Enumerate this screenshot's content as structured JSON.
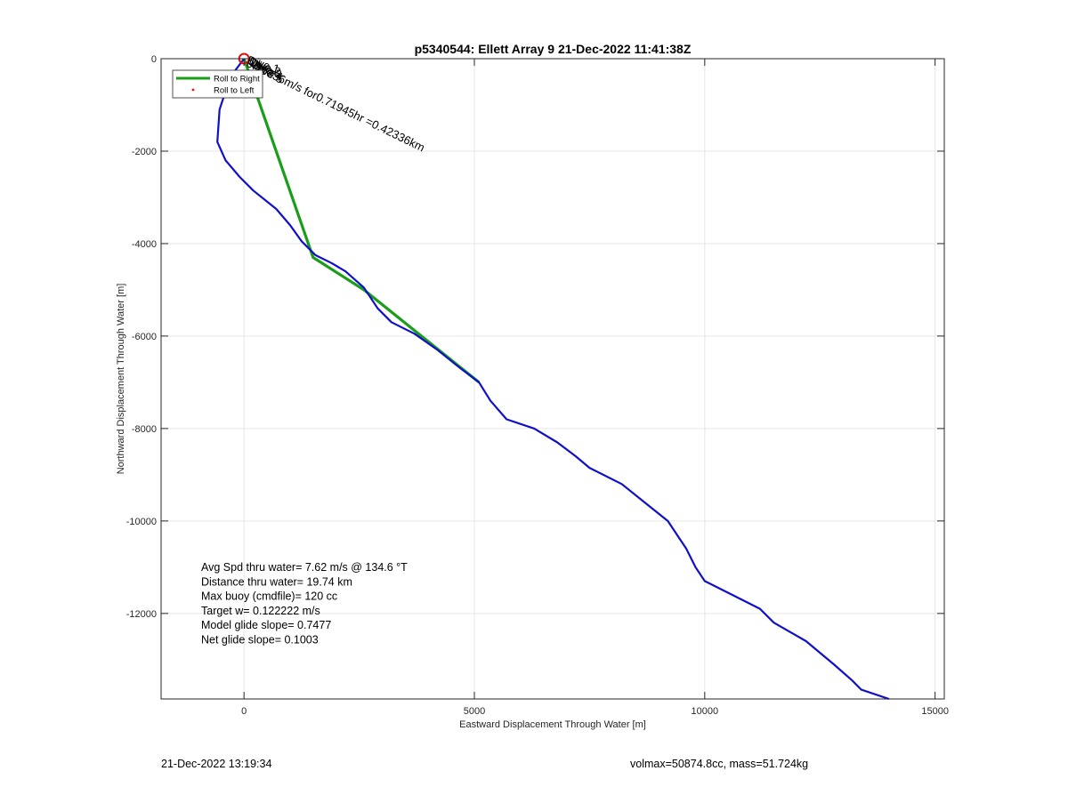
{
  "chart_data": {
    "type": "line",
    "title": "p5340544: Ellett Array 9 21-Dec-2022 11:41:38Z",
    "xlabel": "Eastward Displacement Through Water [m]",
    "ylabel": "Northward Displacement Through Water [m]",
    "xlim": [
      -1800,
      15200
    ],
    "ylim": [
      -13850,
      0
    ],
    "xticks": [
      0,
      5000,
      10000,
      15000
    ],
    "yticks": [
      -12000,
      -10000,
      -8000,
      -6000,
      -4000,
      -2000,
      0
    ],
    "grid": true,
    "legend_position": "top-left",
    "legend": [
      {
        "label": "Roll to Right",
        "style": "line",
        "color": "#1a9e1a"
      },
      {
        "label": "Roll to Left",
        "style": "dot",
        "color": "#e01010"
      }
    ],
    "series": [
      {
        "name": "Roll to Right",
        "color": "#1a9e1a",
        "points": [
          [
            0,
            0
          ],
          [
            1500,
            -4300
          ],
          [
            2600,
            -5000
          ],
          [
            5100,
            -7000
          ]
        ]
      }
    ],
    "track": {
      "color": "#1010c8",
      "points": [
        [
          0,
          0
        ],
        [
          -300,
          -400
        ],
        [
          -530,
          -1100
        ],
        [
          -580,
          -1800
        ],
        [
          -400,
          -2200
        ],
        [
          -100,
          -2550
        ],
        [
          200,
          -2850
        ],
        [
          700,
          -3250
        ],
        [
          1000,
          -3600
        ],
        [
          1250,
          -3950
        ],
        [
          1550,
          -4250
        ],
        [
          1900,
          -4420
        ],
        [
          2200,
          -4600
        ],
        [
          2600,
          -4950
        ],
        [
          2900,
          -5400
        ],
        [
          3200,
          -5700
        ],
        [
          3700,
          -5950
        ],
        [
          4200,
          -6300
        ],
        [
          4700,
          -6700
        ],
        [
          5100,
          -7000
        ],
        [
          5350,
          -7400
        ],
        [
          5700,
          -7800
        ],
        [
          6300,
          -8000
        ],
        [
          6800,
          -8300
        ],
        [
          7200,
          -8600
        ],
        [
          7500,
          -8850
        ],
        [
          8200,
          -9200
        ],
        [
          8700,
          -9600
        ],
        [
          9200,
          -10000
        ],
        [
          9600,
          -10600
        ],
        [
          9800,
          -11000
        ],
        [
          10000,
          -11300
        ],
        [
          10600,
          -11600
        ],
        [
          11200,
          -11900
        ],
        [
          11500,
          -12200
        ],
        [
          12200,
          -12600
        ],
        [
          12800,
          -13100
        ],
        [
          13200,
          -13450
        ],
        [
          13400,
          -13650
        ],
        [
          14000,
          -13850
        ]
      ]
    },
    "start_marker": {
      "x": 0,
      "y": 0,
      "color": "#e01010"
    },
    "track_annotation": "0.16336m/s for0.71945hr =0.42336km",
    "overlap_labels": [
      "Dive 1",
      "Dive 2",
      "Dive 3",
      "Dive 4",
      "Dive 5"
    ],
    "stats": [
      "Avg Spd thru water=  7.62 m/s @ 134.6 °T",
      "Distance thru water= 19.74 km",
      "Max buoy (cmdfile)= 120 cc",
      "Target w= 0.122222 m/s",
      "Model glide slope= 0.7477",
      "Net glide slope= 0.1003"
    ]
  },
  "footer": {
    "timestamp": "21-Dec-2022 13:19:34",
    "summary": "volmax=50874.8cc, mass=51.724kg"
  }
}
